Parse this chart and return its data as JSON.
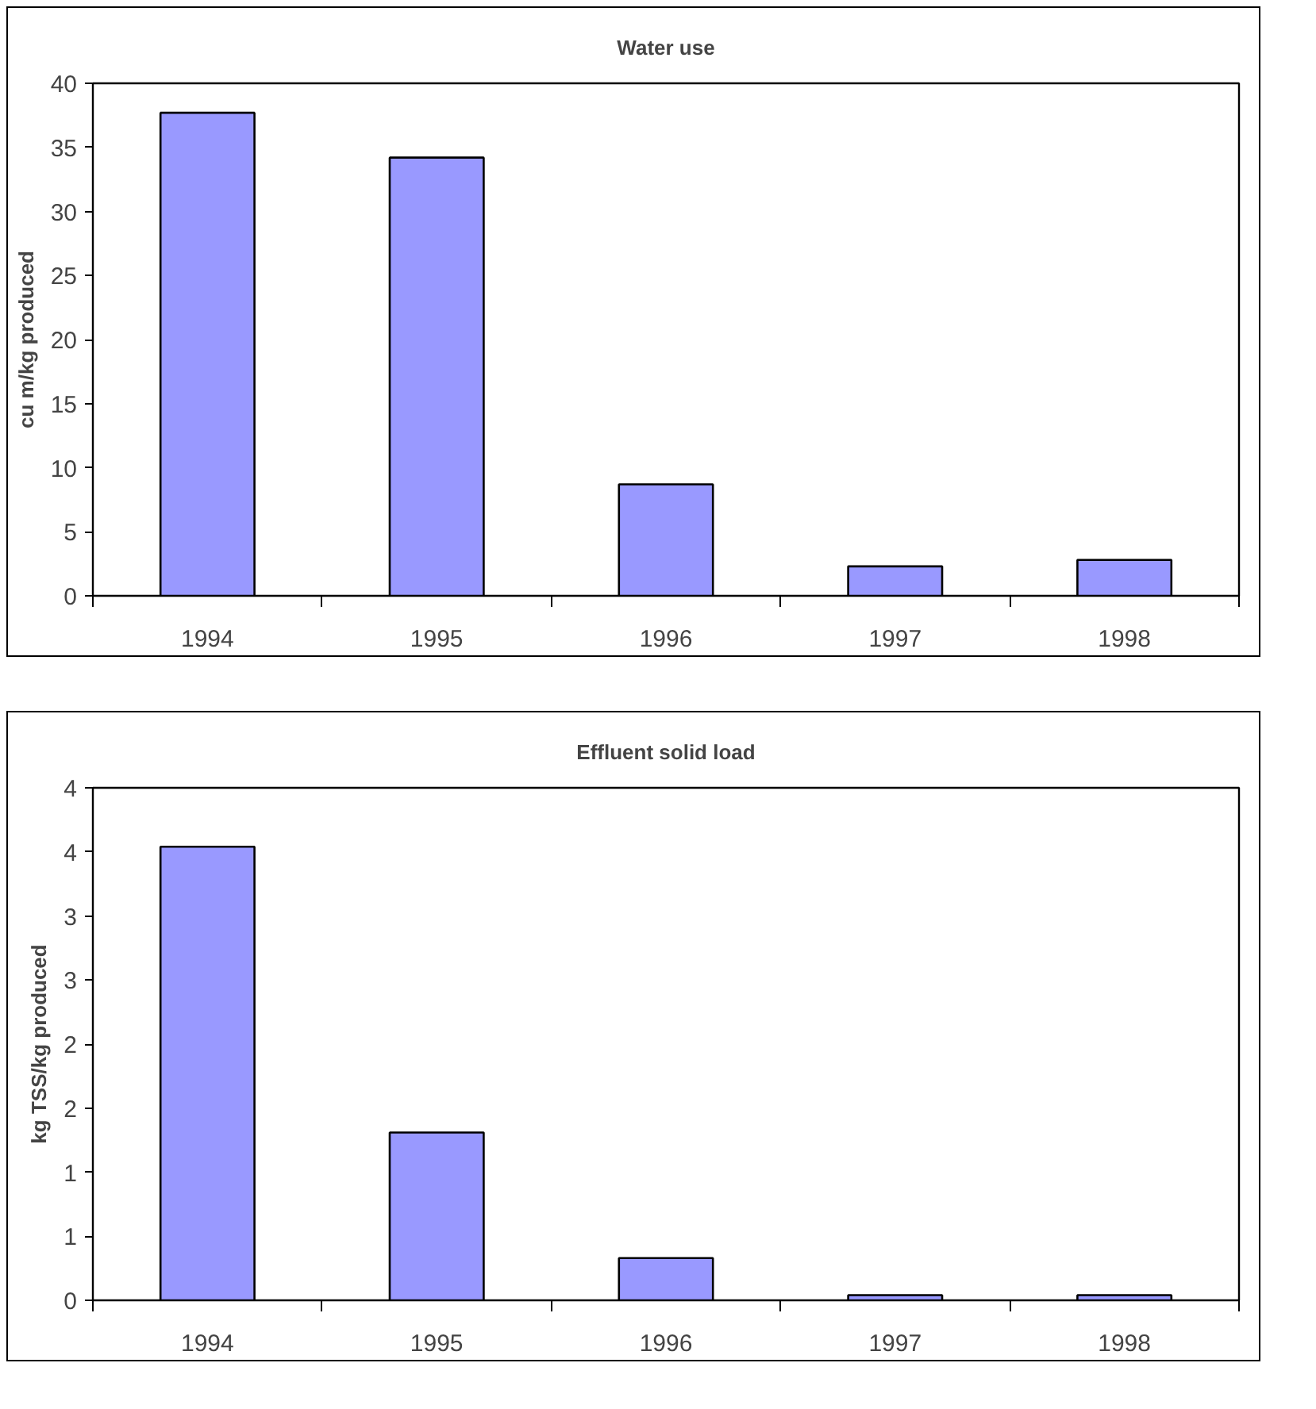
{
  "chart_data": [
    {
      "type": "bar",
      "title": "Water use",
      "ylabel": "cu m/kg produced",
      "categories": [
        "1994",
        "1995",
        "1996",
        "1997",
        "1998"
      ],
      "values": [
        37.7,
        34.2,
        8.7,
        2.3,
        2.8
      ],
      "color": "#9999ff",
      "ylim": [
        0,
        40
      ],
      "yticks": [
        0,
        5,
        10,
        15,
        20,
        25,
        30,
        35,
        40
      ],
      "grid": false
    },
    {
      "type": "bar",
      "title": "Effluent solid load",
      "ylabel": "kg TSS/kg produced",
      "categories": [
        "1994",
        "1995",
        "1996",
        "1997",
        "1998"
      ],
      "values": [
        3.54,
        1.31,
        0.33,
        0.04,
        0.04
      ],
      "color": "#9999ff",
      "ylim": [
        0,
        4
      ],
      "yticks": [
        0,
        {
          "value": 0.5,
          "label": "1"
        },
        1,
        {
          "value": 1.5,
          "label": "2"
        },
        2,
        {
          "value": 2.5,
          "label": "3"
        },
        3,
        {
          "value": 3.5,
          "label": "4"
        },
        4
      ],
      "grid": false
    }
  ]
}
